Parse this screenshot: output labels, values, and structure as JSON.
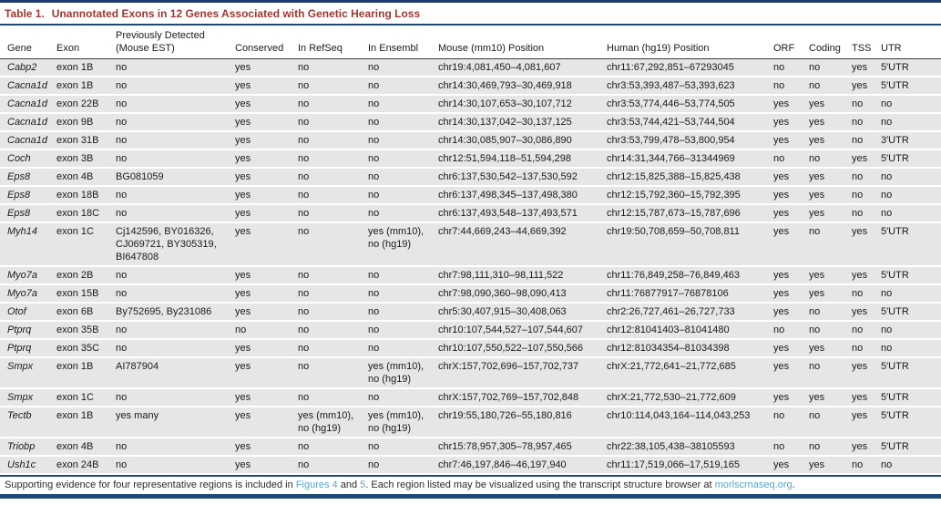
{
  "table": {
    "title_label": "Table 1.",
    "title_text": "Unannotated Exons in 12 Genes Associated with Genetic Hearing Loss",
    "columns": [
      "Gene",
      "Exon",
      "Previously Detected (Mouse EST)",
      "Conserved",
      "In RefSeq",
      "In Ensembl",
      "Mouse (mm10) Position",
      "Human (hg19) Position",
      "ORF",
      "Coding",
      "TSS",
      "UTR"
    ],
    "col_keys": [
      "gene",
      "exon",
      "prev_detected",
      "conserved",
      "in_refseq",
      "in_ensembl",
      "mouse_position",
      "human_position",
      "orf",
      "coding",
      "tss",
      "utr"
    ],
    "rows": [
      [
        "Cabp2",
        "exon 1B",
        "no",
        "yes",
        "no",
        "no",
        "chr19:4,081,450–4,081,607",
        "chr11:67,292,851–67293045",
        "no",
        "no",
        "yes",
        "5′UTR"
      ],
      [
        "Cacna1d",
        "exon 1B",
        "no",
        "yes",
        "no",
        "no",
        "chr14:30,469,793–30,469,918",
        "chr3:53,393,487–53,393,623",
        "no",
        "no",
        "yes",
        "5′UTR"
      ],
      [
        "Cacna1d",
        "exon 22B",
        "no",
        "yes",
        "no",
        "no",
        "chr14:30,107,653–30,107,712",
        "chr3:53,774,446–53,774,505",
        "yes",
        "yes",
        "no",
        "no"
      ],
      [
        "Cacna1d",
        "exon 9B",
        "no",
        "yes",
        "no",
        "no",
        "chr14:30,137,042–30,137,125",
        "chr3:53,744,421–53,744,504",
        "yes",
        "yes",
        "no",
        "no"
      ],
      [
        "Cacna1d",
        "exon 31B",
        "no",
        "yes",
        "no",
        "no",
        "chr14:30,085,907–30,086,890",
        "chr3:53,799,478–53,800,954",
        "yes",
        "yes",
        "no",
        "3′UTR"
      ],
      [
        "Coch",
        "exon 3B",
        "no",
        "yes",
        "no",
        "no",
        "chr12:51,594,118–51,594,298",
        "chr14:31,344,766–31344969",
        "no",
        "no",
        "yes",
        "5′UTR"
      ],
      [
        "Eps8",
        "exon 4B",
        "BG081059",
        "yes",
        "no",
        "no",
        "chr6:137,530,542–137,530,592",
        "chr12:15,825,388–15,825,438",
        "yes",
        "yes",
        "no",
        "no"
      ],
      [
        "Eps8",
        "exon 18B",
        "no",
        "yes",
        "no",
        "no",
        "chr6:137,498,345–137,498,380",
        "chr12:15,792,360–15,792,395",
        "yes",
        "yes",
        "no",
        "no"
      ],
      [
        "Eps8",
        "exon 18C",
        "no",
        "yes",
        "no",
        "no",
        "chr6:137,493,548–137,493,571",
        "chr12:15,787,673–15,787,696",
        "yes",
        "yes",
        "no",
        "no"
      ],
      [
        "Myh14",
        "exon 1C",
        "Cj142596, BY016326, CJ069721, BY305319, BI647808",
        "yes",
        "no",
        "yes (mm10), no (hg19)",
        "chr7:44,669,243–44,669,392",
        "chr19:50,708,659–50,708,811",
        "yes",
        "no",
        "yes",
        "5′UTR"
      ],
      [
        "Myo7a",
        "exon 2B",
        "no",
        "yes",
        "no",
        "no",
        "chr7:98,111,310–98,111,522",
        "chr11:76,849,258–76,849,463",
        "yes",
        "yes",
        "yes",
        "5′UTR"
      ],
      [
        "Myo7a",
        "exon 15B",
        "no",
        "yes",
        "no",
        "no",
        "chr7:98,090,360–98,090,413",
        "chr11:76877917–76878106",
        "yes",
        "yes",
        "no",
        "no"
      ],
      [
        "Otof",
        "exon 6B",
        "By752695, By231086",
        "yes",
        "no",
        "no",
        "chr5:30,407,915–30,408,063",
        "chr2:26,727,461–26,727,733",
        "yes",
        "no",
        "yes",
        "5′UTR"
      ],
      [
        "Ptprq",
        "exon 35B",
        "no",
        "no",
        "no",
        "no",
        "chr10:107,544,527–107,544,607",
        "chr12:81041403–81041480",
        "no",
        "no",
        "no",
        "no"
      ],
      [
        "Ptprq",
        "exon 35C",
        "no",
        "yes",
        "no",
        "no",
        "chr10:107,550,522–107,550,566",
        "chr12:81034354–81034398",
        "yes",
        "yes",
        "no",
        "no"
      ],
      [
        "Smpx",
        "exon 1B",
        "AI787904",
        "yes",
        "no",
        "yes (mm10), no (hg19)",
        "chrX:157,702,696–157,702,737",
        "chrX:21,772,641–21,772,685",
        "yes",
        "no",
        "yes",
        "5′UTR"
      ],
      [
        "Smpx",
        "exon 1C",
        "no",
        "yes",
        "no",
        "no",
        "chrX:157,702,769–157,702,848",
        "chrX:21,772,530–21,772,609",
        "yes",
        "yes",
        "yes",
        "5′UTR"
      ],
      [
        "Tectb",
        "exon 1B",
        "yes many",
        "yes",
        "yes (mm10), no (hg19)",
        "yes (mm10), no (hg19)",
        "chr19:55,180,726–55,180,816",
        "chr10:114,043,164–114,043,253",
        "no",
        "no",
        "yes",
        "5′UTR"
      ],
      [
        "Triobp",
        "exon 4B",
        "no",
        "yes",
        "no",
        "no",
        "chr15:78,957,305–78,957,465",
        "chr22:38,105,438–38105593",
        "no",
        "no",
        "yes",
        "5′UTR"
      ],
      [
        "Ush1c",
        "exon 24B",
        "no",
        "yes",
        "no",
        "no",
        "chr7:46,197,846–46,197,940",
        "chr11:17,519,066–17,519,165",
        "yes",
        "yes",
        "no",
        "no"
      ]
    ],
    "footnote": {
      "text1": "Supporting evidence for four representative regions is included in ",
      "link1": "Figures 4",
      "text2": " and ",
      "link2": "5",
      "text3": ". Each region listed may be visualized using the transcript structure browser at ",
      "link3": "morlscrnaseq.org",
      "text4": "."
    },
    "colors": {
      "title_maroon": "#9c3732",
      "border_navy": "#1d4b76",
      "row_shade_gray": "#e6e6e6",
      "link_blue": "#56a5cf",
      "text": "#1a1a1a"
    }
  }
}
